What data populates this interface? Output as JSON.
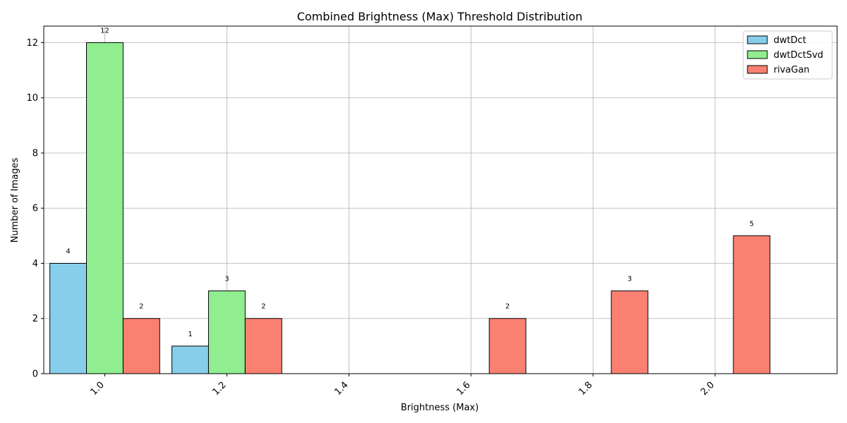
{
  "chart_data": {
    "type": "bar",
    "title": "Combined Brightness (Max) Threshold Distribution",
    "xlabel": "Brightness (Max)",
    "ylabel": "Number of Images",
    "categories": [
      1.0,
      1.2,
      1.4,
      1.6,
      1.8,
      2.0
    ],
    "xticks": [
      "1.0",
      "1.2",
      "1.4",
      "1.6",
      "1.8",
      "2.0"
    ],
    "yticks": [
      "0",
      "2",
      "4",
      "6",
      "8",
      "10",
      "12"
    ],
    "ylim": [
      0,
      12.6
    ],
    "grid": true,
    "legend_position": "top-right",
    "series": [
      {
        "name": "dwtDct",
        "color": "#87CEEB",
        "values": [
          4,
          1,
          0,
          0,
          0,
          0
        ]
      },
      {
        "name": "dwtDctSvd",
        "color": "#90EE90",
        "values": [
          12,
          3,
          0,
          0,
          0,
          0
        ]
      },
      {
        "name": "rivaGan",
        "color": "#FA8072",
        "values": [
          2,
          2,
          0,
          2,
          3,
          5
        ]
      }
    ],
    "data_labels": [
      "4",
      "12",
      "2",
      "1",
      "3",
      "2",
      "2",
      "3",
      "5"
    ]
  }
}
